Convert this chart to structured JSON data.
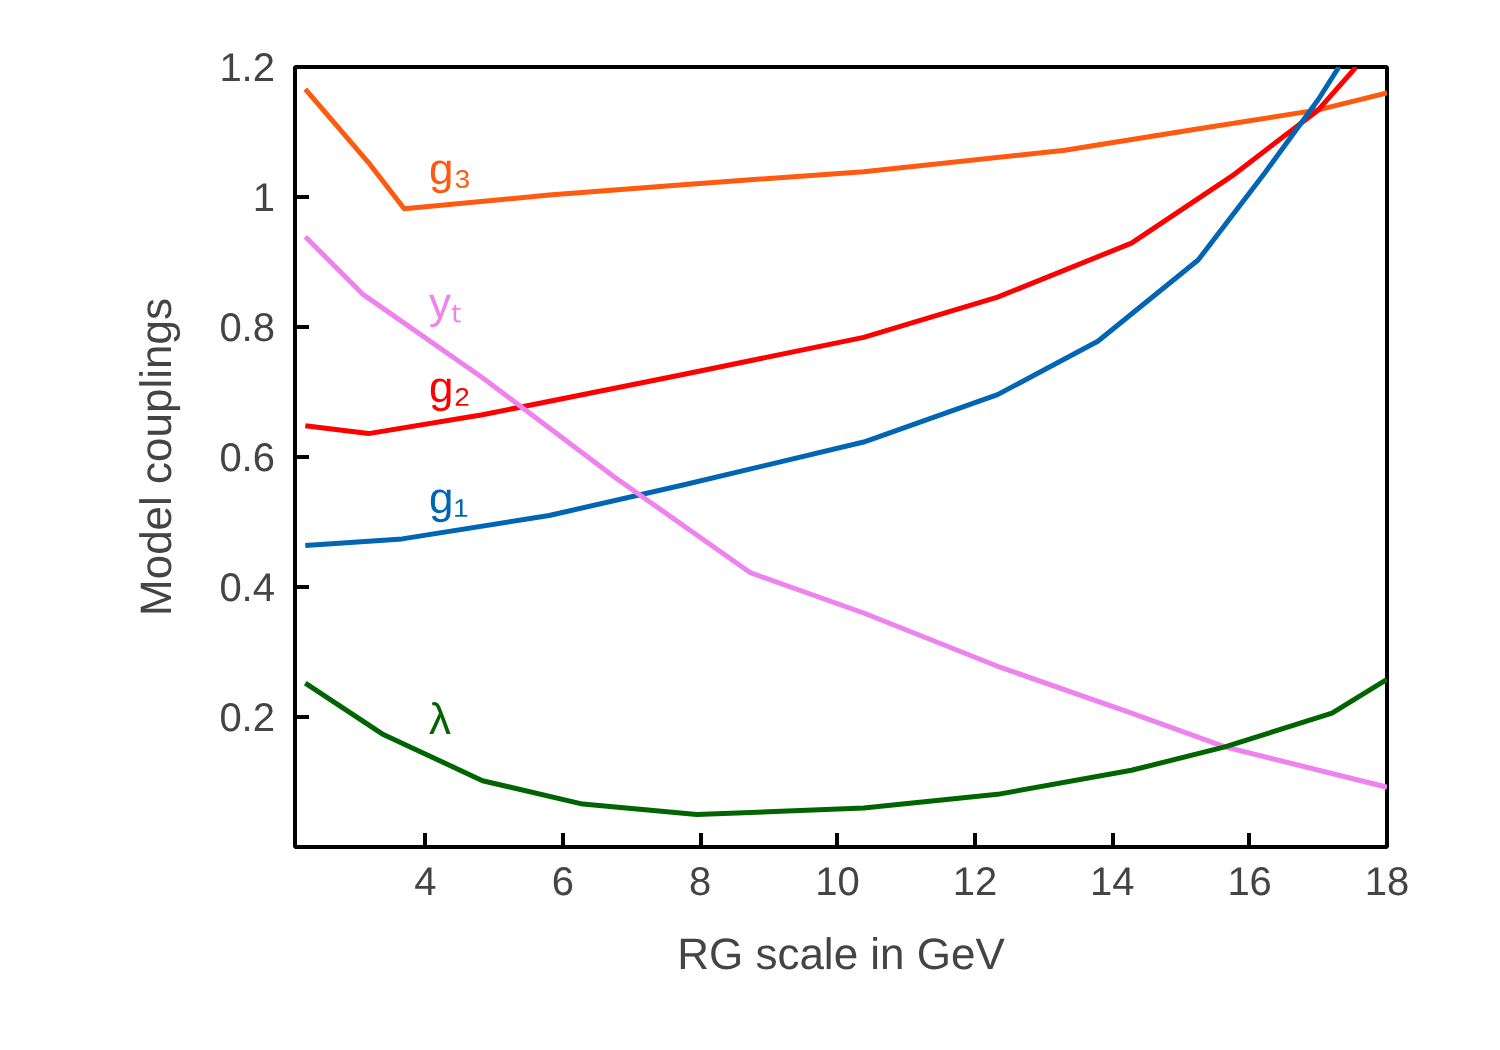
{
  "chart_data": {
    "type": "line",
    "xlabel": "RG scale in GeV",
    "ylabel": "Model couplings",
    "xlim": [
      2.1,
      18
    ],
    "ylim": [
      0,
      1.2
    ],
    "xticks": [
      4,
      6,
      8,
      10,
      12,
      14,
      16,
      18
    ],
    "yticks": [
      0.2,
      0.4,
      0.6,
      0.8,
      1,
      1.2
    ],
    "grid": false,
    "series": [
      {
        "name": "g₃",
        "color": "#ff5a10",
        "x": [
          2.25,
          3.17,
          3.69,
          5.8,
          7.75,
          10.38,
          13.31,
          15.26,
          17.0,
          18
        ],
        "values": [
          1.166,
          1.053,
          0.982,
          1.003,
          1.019,
          1.039,
          1.072,
          1.105,
          1.134,
          1.16
        ]
      },
      {
        "name": "g₂",
        "color": "#ff0000",
        "x": [
          2.25,
          3.17,
          4.83,
          7.75,
          10.38,
          12.33,
          14.28,
          15.74,
          17.0,
          17.55
        ],
        "values": [
          0.648,
          0.636,
          0.665,
          0.727,
          0.784,
          0.846,
          0.929,
          1.032,
          1.134,
          1.2
        ]
      },
      {
        "name": "g₁",
        "color": "#0066b3",
        "x": [
          2.25,
          3.66,
          5.8,
          7.75,
          10.38,
          12.33,
          13.79,
          15.25,
          16.22,
          17.0,
          17.3
        ],
        "values": [
          0.464,
          0.474,
          0.51,
          0.557,
          0.623,
          0.696,
          0.778,
          0.903,
          1.037,
          1.15,
          1.2
        ]
      },
      {
        "name": "yₜ",
        "color": "#ee82ee",
        "x": [
          2.25,
          3.08,
          4.83,
          6.78,
          8.73,
          10.38,
          12.33,
          14.28,
          15.64,
          18
        ],
        "values": [
          0.939,
          0.851,
          0.722,
          0.567,
          0.422,
          0.36,
          0.278,
          0.206,
          0.154,
          0.092
        ]
      },
      {
        "name": "λ",
        "color": "#006400",
        "x": [
          2.25,
          3.37,
          4.83,
          6.29,
          7.95,
          10.38,
          12.33,
          14.28,
          15.64,
          17.2,
          18
        ],
        "values": [
          0.252,
          0.174,
          0.102,
          0.066,
          0.05,
          0.06,
          0.081,
          0.118,
          0.154,
          0.206,
          0.258
        ]
      }
    ]
  }
}
